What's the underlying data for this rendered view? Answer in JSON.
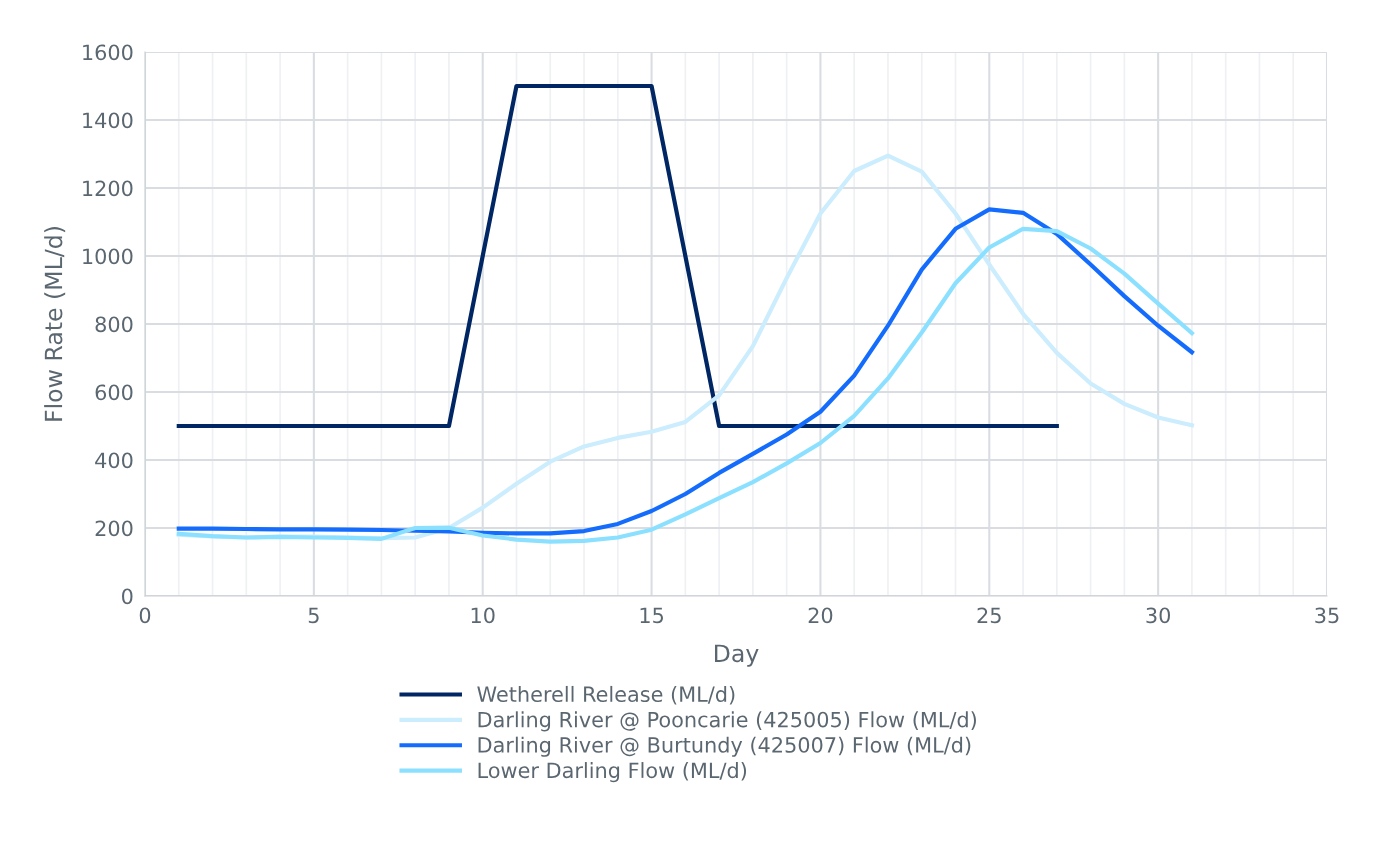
{
  "chart_data": {
    "type": "line",
    "xlabel": "Day",
    "ylabel": "Flow Rate (ML/d)",
    "xlim": [
      0,
      35
    ],
    "xticks": [
      0,
      5,
      10,
      15,
      20,
      25,
      30,
      35
    ],
    "ylim": [
      0,
      1600
    ],
    "yticks": [
      0,
      200,
      400,
      600,
      800,
      1000,
      1200,
      1400,
      1600
    ],
    "grid": true,
    "legend": "bottom",
    "marker": "none",
    "line_style": "solid",
    "series": [
      {
        "name": "Wetherell Release (ML/d)",
        "color": "#002664",
        "x": [
          1,
          2,
          3,
          4,
          5,
          6,
          7,
          8,
          9,
          10,
          11,
          12,
          13,
          14,
          15,
          16,
          17,
          18,
          19,
          20,
          21,
          22,
          23,
          24,
          25,
          26,
          27
        ],
        "values": [
          500,
          500,
          500,
          500,
          500,
          500,
          500,
          500,
          500,
          1000,
          1500,
          1500,
          1500,
          1500,
          1500,
          1000,
          500,
          500,
          500,
          500,
          500,
          500,
          500,
          500,
          500,
          500,
          500
        ]
      },
      {
        "name": "Darling River @ Pooncarie (425005) Flow (ML/d)",
        "color": "#cbedfd",
        "x": [
          1,
          2,
          3,
          4,
          5,
          6,
          7,
          8,
          9,
          10,
          11,
          12,
          13,
          14,
          15,
          16,
          17,
          18,
          19,
          20,
          21,
          22,
          23,
          24,
          25,
          26,
          27,
          28,
          29,
          30,
          31
        ],
        "values": [
          180,
          175,
          172,
          175,
          175,
          172,
          170,
          172,
          200,
          260,
          330,
          395,
          440,
          465,
          483,
          512,
          590,
          735,
          935,
          1125,
          1250,
          1295,
          1248,
          1125,
          975,
          830,
          715,
          625,
          565,
          525,
          502
        ]
      },
      {
        "name": "Darling River @ Burtundy (425007) Flow (ML/d)",
        "color": "#146cfd",
        "x": [
          1,
          2,
          3,
          4,
          5,
          6,
          7,
          8,
          9,
          10,
          11,
          12,
          13,
          14,
          15,
          16,
          17,
          18,
          19,
          20,
          21,
          22,
          23,
          24,
          25,
          26,
          27,
          28,
          29,
          30,
          31
        ],
        "values": [
          198,
          198,
          197,
          196,
          196,
          195,
          194,
          192,
          190,
          186,
          184,
          184,
          191,
          212,
          250,
          300,
          362,
          418,
          475,
          542,
          648,
          795,
          960,
          1080,
          1137,
          1127,
          1065,
          975,
          882,
          795,
          717
        ]
      },
      {
        "name": "Lower Darling Flow (ML/d)",
        "color": "#8ce0ff",
        "x": [
          1,
          2,
          3,
          4,
          5,
          6,
          7,
          8,
          9,
          10,
          11,
          12,
          13,
          14,
          15,
          16,
          17,
          18,
          19,
          20,
          21,
          22,
          23,
          24,
          25,
          26,
          27,
          28,
          29,
          30,
          31
        ],
        "values": [
          183,
          176,
          172,
          174,
          172,
          171,
          168,
          200,
          201,
          178,
          166,
          160,
          162,
          172,
          195,
          240,
          288,
          335,
          390,
          450,
          530,
          640,
          775,
          920,
          1025,
          1080,
          1073,
          1022,
          948,
          860,
          773
        ]
      }
    ]
  }
}
